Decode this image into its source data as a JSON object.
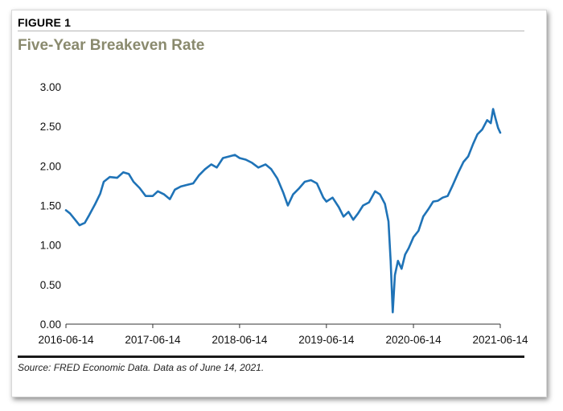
{
  "figure": {
    "label": "FIGURE 1",
    "title": "Five-Year Breakeven Rate",
    "source": "Source: FRED Economic Data. Data as of June 14, 2021."
  },
  "colors": {
    "line": "#1f73b7",
    "title": "#8a8a6e",
    "axis": "#333333"
  },
  "chart_data": {
    "type": "line",
    "title": "Five-Year Breakeven Rate",
    "xlabel": "",
    "ylabel": "",
    "ylim": [
      0,
      3
    ],
    "xlim": [
      "2016-06-14",
      "2021-06-14"
    ],
    "yticks": [
      "0.00",
      "0.50",
      "1.00",
      "1.50",
      "2.00",
      "2.50",
      "3.00"
    ],
    "xticks": [
      "2016-06-14",
      "2017-06-14",
      "2018-06-14",
      "2019-06-14",
      "2020-06-14",
      "2021-06-14"
    ],
    "grid": false,
    "series": [
      {
        "x": [
          "2016-06-14",
          "2016-07-01",
          "2016-07-20",
          "2016-08-10",
          "2016-09-01",
          "2016-09-20",
          "2016-10-15",
          "2016-11-05",
          "2016-11-20",
          "2016-12-15",
          "2017-01-15",
          "2017-02-10",
          "2017-03-05",
          "2017-03-25",
          "2017-04-20",
          "2017-05-15",
          "2017-06-14",
          "2017-07-05",
          "2017-08-01",
          "2017-08-25",
          "2017-09-15",
          "2017-10-10",
          "2017-11-05",
          "2017-12-01",
          "2017-12-25",
          "2018-01-20",
          "2018-02-15",
          "2018-03-10",
          "2018-04-05",
          "2018-05-01",
          "2018-05-25",
          "2018-06-14",
          "2018-07-10",
          "2018-08-05",
          "2018-09-01",
          "2018-10-01",
          "2018-10-25",
          "2018-11-20",
          "2018-12-15",
          "2019-01-03",
          "2019-01-25",
          "2019-02-20",
          "2019-03-15",
          "2019-04-10",
          "2019-05-05",
          "2019-06-01",
          "2019-06-14",
          "2019-07-10",
          "2019-08-05",
          "2019-08-25",
          "2019-09-15",
          "2019-10-05",
          "2019-10-25",
          "2019-11-15",
          "2019-12-10",
          "2020-01-05",
          "2020-01-25",
          "2020-02-15",
          "2020-03-01",
          "2020-03-10",
          "2020-03-19",
          "2020-03-28",
          "2020-04-10",
          "2020-04-25",
          "2020-05-10",
          "2020-05-25",
          "2020-06-14",
          "2020-07-05",
          "2020-07-25",
          "2020-08-15",
          "2020-09-05",
          "2020-09-25",
          "2020-10-15",
          "2020-11-05",
          "2020-11-25",
          "2020-12-20",
          "2021-01-10",
          "2021-01-30",
          "2021-02-20",
          "2021-03-10",
          "2021-03-30",
          "2021-04-20",
          "2021-05-05",
          "2021-05-15",
          "2021-05-25",
          "2021-06-05",
          "2021-06-14"
        ],
        "values": [
          1.44,
          1.4,
          1.33,
          1.25,
          1.28,
          1.38,
          1.52,
          1.65,
          1.8,
          1.86,
          1.85,
          1.92,
          1.9,
          1.8,
          1.72,
          1.62,
          1.62,
          1.68,
          1.64,
          1.58,
          1.7,
          1.74,
          1.76,
          1.78,
          1.88,
          1.96,
          2.02,
          1.98,
          2.1,
          2.12,
          2.14,
          2.1,
          2.08,
          2.04,
          1.98,
          2.02,
          1.96,
          1.84,
          1.66,
          1.5,
          1.64,
          1.72,
          1.8,
          1.82,
          1.78,
          1.6,
          1.55,
          1.6,
          1.48,
          1.36,
          1.42,
          1.32,
          1.4,
          1.5,
          1.54,
          1.68,
          1.64,
          1.52,
          1.3,
          0.8,
          0.15,
          0.62,
          0.8,
          0.7,
          0.88,
          0.96,
          1.1,
          1.18,
          1.36,
          1.45,
          1.55,
          1.56,
          1.6,
          1.62,
          1.75,
          1.92,
          2.05,
          2.12,
          2.28,
          2.4,
          2.46,
          2.58,
          2.54,
          2.72,
          2.6,
          2.48,
          2.42
        ]
      }
    ]
  }
}
